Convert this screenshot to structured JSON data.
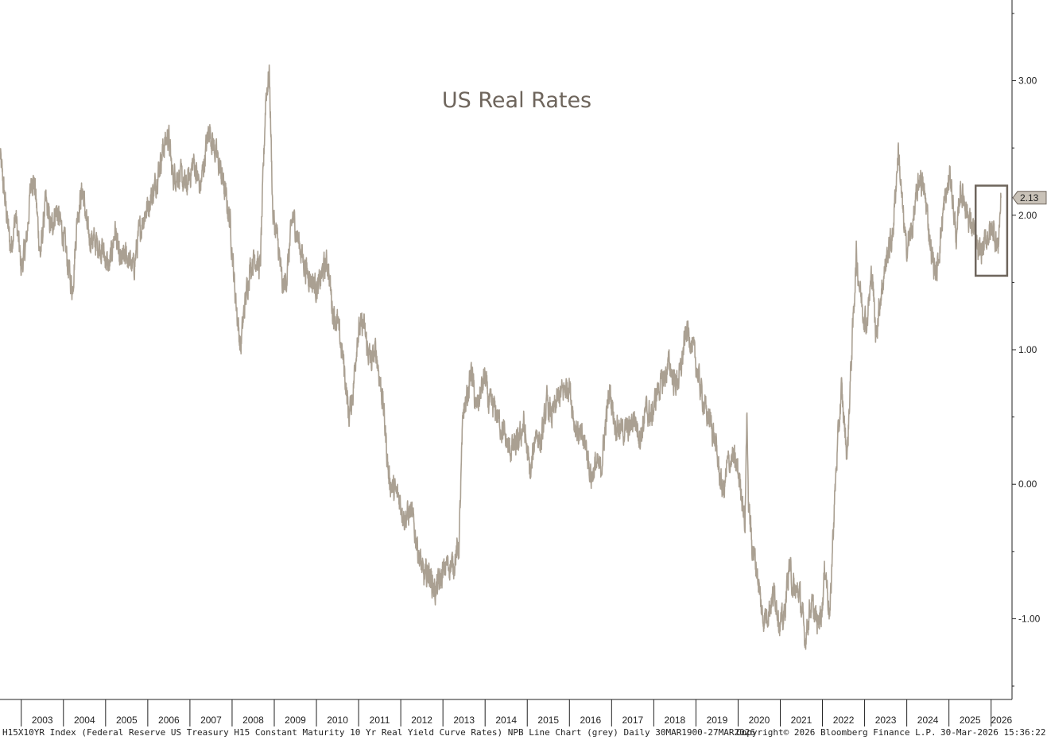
{
  "chart_data": {
    "type": "line",
    "title": "US Real Rates",
    "ylim": [
      -1.6,
      3.6
    ],
    "y_ticks": [
      "3.00",
      "2.00",
      "1.00",
      "0.00",
      "-1.00"
    ],
    "x_labels": [
      "2003",
      "2004",
      "2005",
      "2006",
      "2007",
      "2008",
      "2009",
      "2010",
      "2011",
      "2012",
      "2013",
      "2014",
      "2015",
      "2016",
      "2017",
      "2018",
      "2019",
      "2020",
      "2021",
      "2022",
      "2023",
      "2024",
      "2025",
      "2026"
    ],
    "xlim": [
      "2002-07-01",
      "2026-07-01"
    ],
    "grid": false,
    "series": [
      {
        "color": "#aaa092",
        "last_value_label": "2.13",
        "points": [
          [
            "2002-07-01",
            2.45
          ],
          [
            "2002-08-15",
            2.1
          ],
          [
            "2002-10-01",
            1.75
          ],
          [
            "2002-11-15",
            2.0
          ],
          [
            "2003-01-01",
            1.6
          ],
          [
            "2003-02-15",
            1.8
          ],
          [
            "2003-04-01",
            2.3
          ],
          [
            "2003-05-01",
            2.2
          ],
          [
            "2003-06-15",
            1.7
          ],
          [
            "2003-08-01",
            2.1
          ],
          [
            "2003-09-15",
            1.9
          ],
          [
            "2003-11-01",
            2.05
          ],
          [
            "2004-01-01",
            1.85
          ],
          [
            "2004-02-15",
            1.6
          ],
          [
            "2004-03-20",
            1.45
          ],
          [
            "2004-05-01",
            2.0
          ],
          [
            "2004-06-15",
            2.2
          ],
          [
            "2004-08-01",
            1.85
          ],
          [
            "2004-10-01",
            1.8
          ],
          [
            "2004-12-01",
            1.75
          ],
          [
            "2005-02-01",
            1.6
          ],
          [
            "2005-03-25",
            1.9
          ],
          [
            "2005-05-01",
            1.65
          ],
          [
            "2005-07-01",
            1.7
          ],
          [
            "2005-09-01",
            1.6
          ],
          [
            "2005-10-15",
            1.85
          ],
          [
            "2005-12-01",
            2.0
          ],
          [
            "2006-01-15",
            2.1
          ],
          [
            "2006-03-01",
            2.2
          ],
          [
            "2006-05-15",
            2.5
          ],
          [
            "2006-06-30",
            2.6
          ],
          [
            "2006-08-01",
            2.3
          ],
          [
            "2006-10-01",
            2.3
          ],
          [
            "2006-12-01",
            2.2
          ],
          [
            "2007-02-01",
            2.4
          ],
          [
            "2007-04-01",
            2.2
          ],
          [
            "2007-06-15",
            2.65
          ],
          [
            "2007-07-15",
            2.55
          ],
          [
            "2007-09-01",
            2.4
          ],
          [
            "2007-10-15",
            2.25
          ],
          [
            "2007-12-15",
            1.95
          ],
          [
            "2008-01-25",
            1.45
          ],
          [
            "2008-03-15",
            1.0
          ],
          [
            "2008-04-15",
            1.3
          ],
          [
            "2008-06-01",
            1.6
          ],
          [
            "2008-07-15",
            1.7
          ],
          [
            "2008-09-01",
            1.6
          ],
          [
            "2008-10-20",
            2.9
          ],
          [
            "2008-11-20",
            3.05
          ],
          [
            "2008-12-20",
            2.0
          ],
          [
            "2009-02-01",
            1.8
          ],
          [
            "2009-03-15",
            1.45
          ],
          [
            "2009-04-20",
            1.55
          ],
          [
            "2009-06-10",
            2.0
          ],
          [
            "2009-08-01",
            1.8
          ],
          [
            "2009-10-01",
            1.6
          ],
          [
            "2009-12-01",
            1.5
          ],
          [
            "2010-01-15",
            1.45
          ],
          [
            "2010-03-01",
            1.6
          ],
          [
            "2010-04-10",
            1.65
          ],
          [
            "2010-05-20",
            1.3
          ],
          [
            "2010-07-01",
            1.2
          ],
          [
            "2010-08-25",
            0.9
          ],
          [
            "2010-10-10",
            0.5
          ],
          [
            "2010-11-15",
            0.7
          ],
          [
            "2010-12-20",
            1.1
          ],
          [
            "2011-02-10",
            1.2
          ],
          [
            "2011-03-20",
            1.0
          ],
          [
            "2011-04-25",
            0.9
          ],
          [
            "2011-06-01",
            1.0
          ],
          [
            "2011-08-01",
            0.6
          ],
          [
            "2011-09-20",
            0.05
          ],
          [
            "2011-11-01",
            -0.05
          ],
          [
            "2011-12-20",
            -0.1
          ],
          [
            "2012-02-01",
            -0.25
          ],
          [
            "2012-04-01",
            -0.2
          ],
          [
            "2012-06-01",
            -0.5
          ],
          [
            "2012-07-20",
            -0.7
          ],
          [
            "2012-09-01",
            -0.65
          ],
          [
            "2012-10-25",
            -0.8
          ],
          [
            "2012-12-15",
            -0.7
          ],
          [
            "2013-02-01",
            -0.6
          ],
          [
            "2013-04-01",
            -0.6
          ],
          [
            "2013-05-20",
            -0.45
          ],
          [
            "2013-06-25",
            0.55
          ],
          [
            "2013-08-01",
            0.65
          ],
          [
            "2013-09-05",
            0.85
          ],
          [
            "2013-10-15",
            0.55
          ],
          [
            "2013-12-30",
            0.8
          ],
          [
            "2014-02-01",
            0.6
          ],
          [
            "2014-04-01",
            0.55
          ],
          [
            "2014-06-01",
            0.4
          ],
          [
            "2014-08-01",
            0.25
          ],
          [
            "2014-10-15",
            0.3
          ],
          [
            "2014-12-01",
            0.45
          ],
          [
            "2015-01-30",
            0.05
          ],
          [
            "2015-03-15",
            0.4
          ],
          [
            "2015-05-01",
            0.3
          ],
          [
            "2015-06-20",
            0.6
          ],
          [
            "2015-08-01",
            0.5
          ],
          [
            "2015-10-01",
            0.65
          ],
          [
            "2015-11-15",
            0.7
          ],
          [
            "2015-12-30",
            0.75
          ],
          [
            "2016-02-15",
            0.45
          ],
          [
            "2016-04-01",
            0.35
          ],
          [
            "2016-05-20",
            0.3
          ],
          [
            "2016-07-08",
            0.05
          ],
          [
            "2016-08-15",
            0.15
          ],
          [
            "2016-10-01",
            0.1
          ],
          [
            "2016-11-10",
            0.45
          ],
          [
            "2016-12-15",
            0.7
          ],
          [
            "2017-02-01",
            0.45
          ],
          [
            "2017-04-01",
            0.4
          ],
          [
            "2017-06-01",
            0.4
          ],
          [
            "2017-07-15",
            0.5
          ],
          [
            "2017-09-08",
            0.35
          ],
          [
            "2017-10-25",
            0.55
          ],
          [
            "2017-12-15",
            0.5
          ],
          [
            "2018-02-01",
            0.7
          ],
          [
            "2018-03-15",
            0.75
          ],
          [
            "2018-05-15",
            0.9
          ],
          [
            "2018-07-01",
            0.75
          ],
          [
            "2018-08-15",
            0.8
          ],
          [
            "2018-10-10",
            1.15
          ],
          [
            "2018-11-08",
            1.1
          ],
          [
            "2018-12-20",
            0.95
          ],
          [
            "2019-02-01",
            0.75
          ],
          [
            "2019-03-25",
            0.55
          ],
          [
            "2019-05-15",
            0.45
          ],
          [
            "2019-06-20",
            0.3
          ],
          [
            "2019-08-05",
            0.0
          ],
          [
            "2019-09-01",
            -0.05
          ],
          [
            "2019-10-01",
            0.15
          ],
          [
            "2019-11-15",
            0.2
          ],
          [
            "2019-12-30",
            0.1
          ],
          [
            "2020-01-30",
            -0.05
          ],
          [
            "2020-03-01",
            -0.3
          ],
          [
            "2020-03-18",
            0.6
          ],
          [
            "2020-03-28",
            -0.1
          ],
          [
            "2020-05-01",
            -0.45
          ],
          [
            "2020-06-15",
            -0.65
          ],
          [
            "2020-08-01",
            -1.0
          ],
          [
            "2020-09-15",
            -0.95
          ],
          [
            "2020-11-15",
            -0.8
          ],
          [
            "2020-12-30",
            -1.05
          ],
          [
            "2021-02-01",
            -1.0
          ],
          [
            "2021-03-20",
            -0.6
          ],
          [
            "2021-05-01",
            -0.8
          ],
          [
            "2021-06-15",
            -0.8
          ],
          [
            "2021-08-04",
            -1.15
          ],
          [
            "2021-09-20",
            -0.9
          ],
          [
            "2021-10-20",
            -0.95
          ],
          [
            "2021-11-20",
            -1.05
          ],
          [
            "2021-12-30",
            -0.9
          ],
          [
            "2022-01-25",
            -0.6
          ],
          [
            "2022-03-07",
            -1.0
          ],
          [
            "2022-04-01",
            -0.4
          ],
          [
            "2022-04-29",
            0.1
          ],
          [
            "2022-06-14",
            0.7
          ],
          [
            "2022-07-10",
            0.45
          ],
          [
            "2022-08-03",
            0.2
          ],
          [
            "2022-09-01",
            0.8
          ],
          [
            "2022-10-21",
            1.7
          ],
          [
            "2022-11-15",
            1.5
          ],
          [
            "2022-12-15",
            1.3
          ],
          [
            "2023-01-20",
            1.2
          ],
          [
            "2023-03-08",
            1.6
          ],
          [
            "2023-04-06",
            1.1
          ],
          [
            "2023-05-20",
            1.4
          ],
          [
            "2023-07-15",
            1.7
          ],
          [
            "2023-09-01",
            1.85
          ],
          [
            "2023-10-20",
            2.5
          ],
          [
            "2023-11-20",
            2.1
          ],
          [
            "2023-12-26",
            1.75
          ],
          [
            "2024-02-15",
            1.9
          ],
          [
            "2024-04-25",
            2.3
          ],
          [
            "2024-06-15",
            2.1
          ],
          [
            "2024-08-05",
            1.7
          ],
          [
            "2024-09-16",
            1.55
          ],
          [
            "2024-11-15",
            2.05
          ],
          [
            "2025-01-14",
            2.3
          ],
          [
            "2025-02-15",
            2.0
          ],
          [
            "2025-03-10",
            1.8
          ],
          [
            "2025-04-08",
            2.2
          ],
          [
            "2025-05-20",
            2.1
          ],
          [
            "2025-07-01",
            1.95
          ],
          [
            "2025-08-01",
            1.9
          ],
          [
            "2025-09-15",
            1.7
          ],
          [
            "2025-10-20",
            1.75
          ],
          [
            "2025-12-01",
            1.85
          ],
          [
            "2026-01-20",
            1.9
          ],
          [
            "2026-03-01",
            1.75
          ],
          [
            "2026-03-27",
            2.13
          ]
        ]
      }
    ],
    "highlight_box": {
      "x": [
        "2025-08-20",
        "2026-05-20"
      ],
      "y": [
        1.55,
        2.22
      ]
    }
  },
  "footer": {
    "description": "H15X10YR Index (Federal Reserve US Treasury H15 Constant Maturity 10 Yr Real Yield Curve Rates) NPB Line Chart (grey) Daily 30MAR1900-27MAR2026",
    "copyright": "Copyright© 2026 Bloomberg Finance L.P.",
    "timestamp": "30-Mar-2026 15:36:22"
  }
}
